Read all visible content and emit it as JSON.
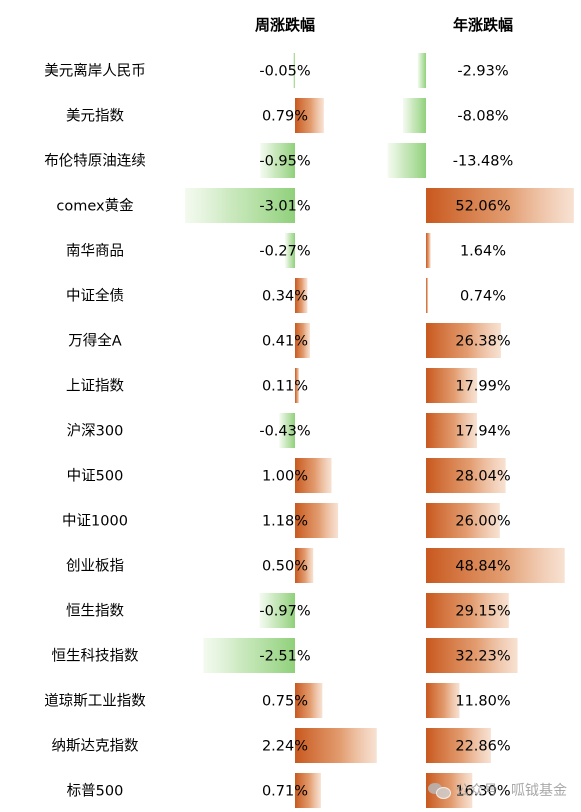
{
  "chart_data": {
    "type": "bar",
    "columns": [
      {
        "key": "weekly",
        "title": "周涨跌幅"
      },
      {
        "key": "yearly",
        "title": "年涨跌幅"
      }
    ],
    "rows": [
      {
        "name": "美元离岸人民币",
        "weekly": -0.05,
        "weekly_text": "-0.05%",
        "yearly": -2.93,
        "yearly_text": "-2.93%"
      },
      {
        "name": "美元指数",
        "weekly": 0.79,
        "weekly_text": "0.79%",
        "yearly": -8.08,
        "yearly_text": "-8.08%"
      },
      {
        "name": "布伦特原油连续",
        "weekly": -0.95,
        "weekly_text": "-0.95%",
        "yearly": -13.48,
        "yearly_text": "-13.48%"
      },
      {
        "name": "comex黄金",
        "weekly": -3.01,
        "weekly_text": "-3.01%",
        "yearly": 52.06,
        "yearly_text": "52.06%"
      },
      {
        "name": "南华商品",
        "weekly": -0.27,
        "weekly_text": "-0.27%",
        "yearly": 1.64,
        "yearly_text": "1.64%"
      },
      {
        "name": "中证全债",
        "weekly": 0.34,
        "weekly_text": "0.34%",
        "yearly": 0.74,
        "yearly_text": "0.74%"
      },
      {
        "name": "万得全A",
        "weekly": 0.41,
        "weekly_text": "0.41%",
        "yearly": 26.38,
        "yearly_text": "26.38%"
      },
      {
        "name": "上证指数",
        "weekly": 0.11,
        "weekly_text": "0.11%",
        "yearly": 17.99,
        "yearly_text": "17.99%"
      },
      {
        "name": "沪深300",
        "weekly": -0.43,
        "weekly_text": "-0.43%",
        "yearly": 17.94,
        "yearly_text": "17.94%"
      },
      {
        "name": "中证500",
        "weekly": 1.0,
        "weekly_text": "1.00%",
        "yearly": 28.04,
        "yearly_text": "28.04%"
      },
      {
        "name": "中证1000",
        "weekly": 1.18,
        "weekly_text": "1.18%",
        "yearly": 26.0,
        "yearly_text": "26.00%"
      },
      {
        "name": "创业板指",
        "weekly": 0.5,
        "weekly_text": "0.50%",
        "yearly": 48.84,
        "yearly_text": "48.84%"
      },
      {
        "name": "恒生指数",
        "weekly": -0.97,
        "weekly_text": "-0.97%",
        "yearly": 29.15,
        "yearly_text": "29.15%"
      },
      {
        "name": "恒生科技指数",
        "weekly": -2.51,
        "weekly_text": "-2.51%",
        "yearly": 32.23,
        "yearly_text": "32.23%"
      },
      {
        "name": "道琼斯工业指数",
        "weekly": 0.75,
        "weekly_text": "0.75%",
        "yearly": 11.8,
        "yearly_text": "11.80%"
      },
      {
        "name": "纳斯达克指数",
        "weekly": 2.24,
        "weekly_text": "2.24%",
        "yearly": 22.86,
        "yearly_text": "22.86%"
      },
      {
        "name": "标普500",
        "weekly": 0.71,
        "weekly_text": "0.71%",
        "yearly": 16.3,
        "yearly_text": "16.30%"
      }
    ],
    "colors": {
      "positive": "#c8581e",
      "negative": "#8fd07a",
      "text": "#1a1a1a"
    }
  },
  "watermark": {
    "text": "公众号 · 呱钺基金",
    "icon": "wechat-icon"
  }
}
